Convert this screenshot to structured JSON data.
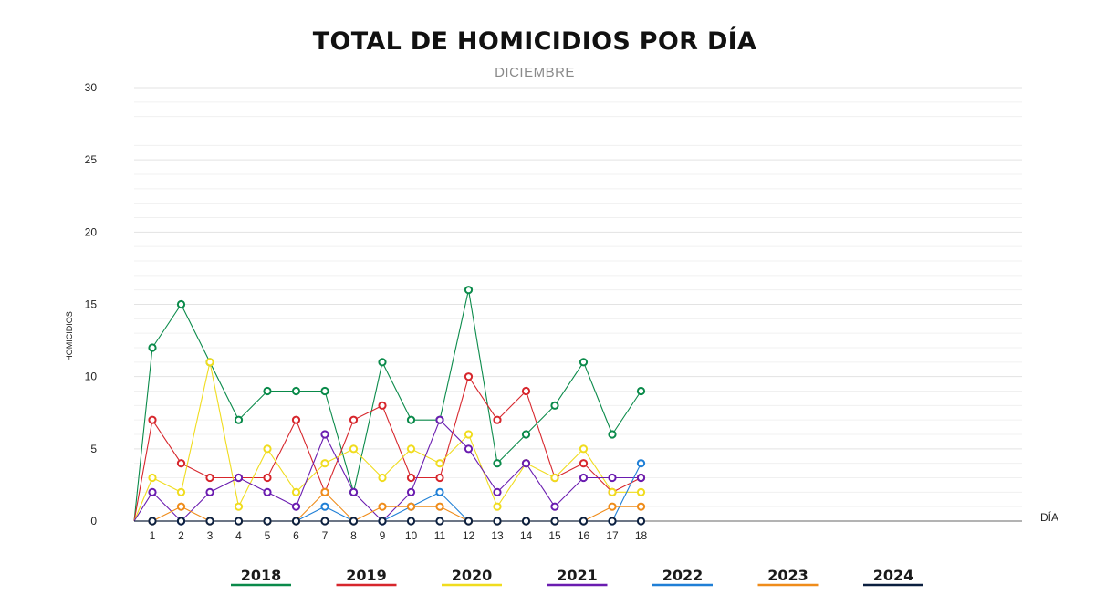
{
  "title": "TOTAL DE HOMICIDIOS POR DÍA",
  "subtitle": "DICIEMBRE",
  "chart_data": {
    "type": "line",
    "title": "TOTAL DE HOMICIDIOS POR DÍA",
    "subtitle": "DICIEMBRE",
    "xlabel": "DÍA",
    "ylabel": "HOMICIDIOS",
    "x": [
      1,
      2,
      3,
      4,
      5,
      6,
      7,
      8,
      9,
      10,
      11,
      12,
      13,
      14,
      15,
      16,
      17,
      18
    ],
    "ylim": [
      0,
      30
    ],
    "yticks": [
      0,
      5,
      10,
      15,
      20,
      25,
      30
    ],
    "grid": true,
    "legend_position": "bottom",
    "series": [
      {
        "name": "2018",
        "color": "#0a8a4a",
        "values": [
          12,
          15,
          11,
          7,
          9,
          9,
          9,
          2,
          11,
          7,
          7,
          16,
          4,
          6,
          8,
          11,
          6,
          9
        ]
      },
      {
        "name": "2019",
        "color": "#d7262c",
        "values": [
          7,
          4,
          3,
          3,
          3,
          7,
          2,
          7,
          8,
          3,
          3,
          10,
          7,
          9,
          3,
          4,
          2,
          3
        ]
      },
      {
        "name": "2020",
        "color": "#f0dc1e",
        "values": [
          3,
          2,
          11,
          1,
          5,
          2,
          4,
          5,
          3,
          5,
          4,
          6,
          1,
          4,
          3,
          5,
          2,
          2
        ]
      },
      {
        "name": "2021",
        "color": "#6a1cb0",
        "values": [
          2,
          0,
          2,
          3,
          2,
          1,
          6,
          2,
          0,
          2,
          7,
          5,
          2,
          4,
          1,
          3,
          3,
          3
        ]
      },
      {
        "name": "2022",
        "color": "#1f7fd6",
        "values": [
          0,
          0,
          0,
          0,
          0,
          0,
          1,
          0,
          0,
          1,
          2,
          0,
          0,
          0,
          0,
          0,
          0,
          4
        ]
      },
      {
        "name": "2023",
        "color": "#ef8c1a",
        "values": [
          0,
          1,
          0,
          0,
          0,
          0,
          2,
          0,
          1,
          1,
          1,
          0,
          0,
          0,
          0,
          0,
          1,
          1
        ]
      },
      {
        "name": "2024",
        "color": "#0b1f3f",
        "values": [
          0,
          0,
          0,
          0,
          0,
          0,
          0,
          0,
          0,
          0,
          0,
          0,
          0,
          0,
          0,
          0,
          0,
          0
        ]
      }
    ]
  }
}
